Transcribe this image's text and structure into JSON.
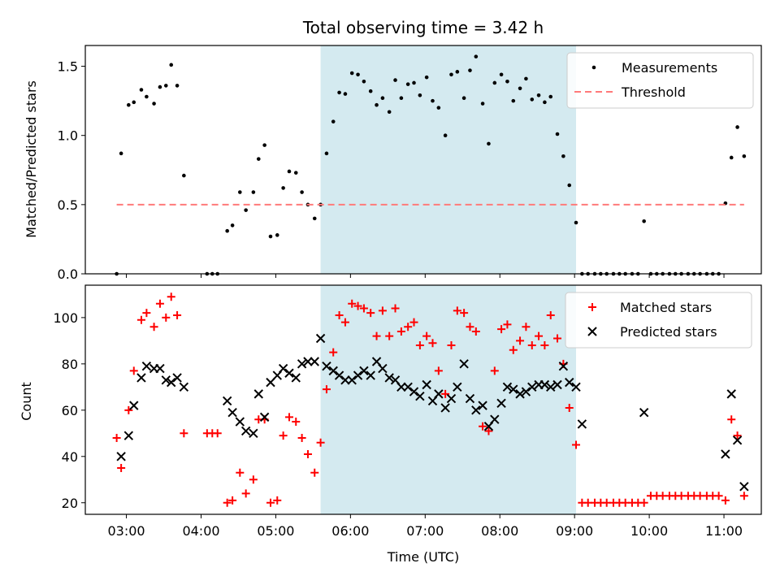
{
  "chart_data": {
    "type": "scatter",
    "title": "Total observing time = 3.42 h",
    "xlabel": "Time (UTC)",
    "x_ticks": [
      "03:00",
      "04:00",
      "05:00",
      "06:00",
      "07:00",
      "08:00",
      "09:00",
      "10:00",
      "11:00"
    ],
    "x_tick_hours": [
      3,
      4,
      5,
      6,
      7,
      8,
      9,
      10,
      11
    ],
    "xlim_hours": [
      2.45,
      11.5
    ],
    "shaded_span_hours": [
      5.6,
      9.02
    ],
    "shade_color": "#d4eaf0",
    "panels": [
      {
        "ylabel": "Matched/Predicted stars",
        "ylim": [
          0,
          1.65
        ],
        "y_ticks": [
          0.0,
          0.5,
          1.0,
          1.5
        ],
        "y_tick_labels": [
          "0.0",
          "0.5",
          "1.0",
          "1.5"
        ],
        "legend": {
          "position": "upper-right",
          "entries": [
            "Measurements",
            "Threshold"
          ]
        },
        "series": [
          {
            "name": "Measurements",
            "style": "dot",
            "color": "#000000",
            "x": [
              2.87,
              2.93,
              3.03,
              3.1,
              3.2,
              3.27,
              3.37,
              3.45,
              3.53,
              3.6,
              3.68,
              3.77,
              4.08,
              4.15,
              4.22,
              4.35,
              4.42,
              4.52,
              4.6,
              4.7,
              4.77,
              4.85,
              4.93,
              5.02,
              5.1,
              5.18,
              5.27,
              5.35,
              5.43,
              5.52,
              5.6,
              5.68,
              5.77,
              5.85,
              5.93,
              6.02,
              6.1,
              6.18,
              6.27,
              6.35,
              6.43,
              6.52,
              6.6,
              6.68,
              6.77,
              6.85,
              6.93,
              7.02,
              7.1,
              7.18,
              7.27,
              7.35,
              7.43,
              7.52,
              7.6,
              7.68,
              7.77,
              7.85,
              7.93,
              8.02,
              8.1,
              8.18,
              8.27,
              8.35,
              8.43,
              8.52,
              8.6,
              8.68,
              8.77,
              8.85,
              8.93,
              9.02,
              9.1,
              9.18,
              9.27,
              9.35,
              9.43,
              9.52,
              9.6,
              9.68,
              9.77,
              9.85,
              9.93,
              10.02,
              10.1,
              10.18,
              10.27,
              10.35,
              10.43,
              10.52,
              10.6,
              10.68,
              10.77,
              10.85,
              10.93,
              11.02,
              11.1,
              11.18,
              11.27
            ],
            "y": [
              0.0,
              0.87,
              1.22,
              1.24,
              1.33,
              1.28,
              1.23,
              1.35,
              1.36,
              1.51,
              1.36,
              0.71,
              0.0,
              0.0,
              0.0,
              0.31,
              0.35,
              0.59,
              0.46,
              0.59,
              0.83,
              0.93,
              0.27,
              0.28,
              0.62,
              0.74,
              0.73,
              0.59,
              0.5,
              0.4,
              0.5,
              0.87,
              1.1,
              1.31,
              1.3,
              1.45,
              1.44,
              1.39,
              1.32,
              1.22,
              1.27,
              1.17,
              1.4,
              1.27,
              1.37,
              1.38,
              1.29,
              1.42,
              1.25,
              1.2,
              1.0,
              1.44,
              1.46,
              1.27,
              1.47,
              1.57,
              1.23,
              0.94,
              1.38,
              1.44,
              1.39,
              1.25,
              1.34,
              1.41,
              1.26,
              1.29,
              1.24,
              1.28,
              1.01,
              0.85,
              0.64,
              0.37,
              0.0,
              0.0,
              0.0,
              0.0,
              0.0,
              0.0,
              0.0,
              0.0,
              0.0,
              0.0,
              0.38,
              0.0,
              0.0,
              0.0,
              0.0,
              0.0,
              0.0,
              0.0,
              0.0,
              0.0,
              0.0,
              0.0,
              0.0,
              0.51,
              0.84,
              1.06,
              0.85
            ]
          },
          {
            "name": "Threshold",
            "style": "dashed-line",
            "color": "#ff7a7a",
            "x": [
              2.87,
              11.27
            ],
            "y": [
              0.5,
              0.5
            ]
          }
        ]
      },
      {
        "ylabel": "Count",
        "ylim": [
          15,
          114
        ],
        "y_ticks": [
          20,
          40,
          60,
          80,
          100
        ],
        "y_tick_labels": [
          "20",
          "40",
          "60",
          "80",
          "100"
        ],
        "legend": {
          "position": "upper-right",
          "entries": [
            "Matched stars",
            "Predicted stars"
          ]
        },
        "series": [
          {
            "name": "Matched stars",
            "style": "plus",
            "color": "#ff0000",
            "x": [
              2.87,
              2.93,
              3.03,
              3.1,
              3.2,
              3.27,
              3.37,
              3.45,
              3.53,
              3.6,
              3.68,
              3.77,
              4.08,
              4.15,
              4.22,
              4.35,
              4.42,
              4.52,
              4.6,
              4.7,
              4.77,
              4.85,
              4.93,
              5.02,
              5.1,
              5.18,
              5.27,
              5.35,
              5.43,
              5.52,
              5.6,
              5.68,
              5.77,
              5.85,
              5.93,
              6.02,
              6.1,
              6.18,
              6.27,
              6.35,
              6.43,
              6.52,
              6.6,
              6.68,
              6.77,
              6.85,
              6.93,
              7.02,
              7.1,
              7.18,
              7.27,
              7.35,
              7.43,
              7.52,
              7.6,
              7.68,
              7.77,
              7.85,
              7.93,
              8.02,
              8.1,
              8.18,
              8.27,
              8.35,
              8.43,
              8.52,
              8.6,
              8.68,
              8.77,
              8.85,
              8.93,
              9.02,
              9.1,
              9.18,
              9.27,
              9.35,
              9.43,
              9.52,
              9.6,
              9.68,
              9.77,
              9.85,
              9.93,
              10.02,
              10.1,
              10.18,
              10.27,
              10.35,
              10.43,
              10.52,
              10.6,
              10.68,
              10.77,
              10.85,
              10.93,
              11.02,
              11.1,
              11.18,
              11.27
            ],
            "y": [
              48,
              35,
              60,
              77,
              99,
              102,
              96,
              106,
              100,
              109,
              101,
              50,
              50,
              50,
              50,
              20,
              21,
              33,
              24,
              30,
              56,
              56,
              20,
              21,
              49,
              57,
              55,
              48,
              41,
              33,
              46,
              69,
              85,
              101,
              98,
              106,
              105,
              104,
              102,
              92,
              103,
              92,
              104,
              94,
              96,
              98,
              88,
              92,
              89,
              77,
              67,
              88,
              103,
              102,
              96,
              94,
              53,
              51,
              77,
              95,
              97,
              86,
              90,
              96,
              88,
              92,
              88,
              101,
              91,
              80,
              61,
              45,
              20,
              20,
              20,
              20,
              20,
              20,
              20,
              20,
              20,
              20,
              20,
              23,
              23,
              23,
              23,
              23,
              23,
              23,
              23,
              23,
              23,
              23,
              23,
              21,
              56,
              49,
              23
            ]
          },
          {
            "name": "Predicted stars",
            "style": "x",
            "color": "#000000",
            "x": [
              2.93,
              3.03,
              3.1,
              3.2,
              3.27,
              3.37,
              3.45,
              3.53,
              3.6,
              3.68,
              3.77,
              4.35,
              4.42,
              4.52,
              4.6,
              4.7,
              4.77,
              4.85,
              4.93,
              5.02,
              5.1,
              5.18,
              5.27,
              5.35,
              5.43,
              5.52,
              5.6,
              5.68,
              5.77,
              5.85,
              5.93,
              6.02,
              6.1,
              6.18,
              6.27,
              6.35,
              6.43,
              6.52,
              6.6,
              6.68,
              6.77,
              6.85,
              6.93,
              7.02,
              7.1,
              7.18,
              7.27,
              7.35,
              7.43,
              7.52,
              7.6,
              7.68,
              7.77,
              7.85,
              7.93,
              8.02,
              8.1,
              8.18,
              8.27,
              8.35,
              8.43,
              8.52,
              8.6,
              8.68,
              8.77,
              8.85,
              8.93,
              9.02,
              9.1,
              9.93,
              11.02,
              11.1,
              11.18,
              11.27
            ],
            "y": [
              40,
              49,
              62,
              74,
              79,
              78,
              78,
              73,
              72,
              74,
              70,
              64,
              59,
              55,
              51,
              50,
              67,
              57,
              72,
              75,
              78,
              76,
              74,
              80,
              81,
              81,
              91,
              79,
              77,
              75,
              73,
              73,
              75,
              77,
              75,
              81,
              78,
              74,
              73,
              70,
              70,
              68,
              66,
              71,
              64,
              67,
              61,
              65,
              70,
              80,
              65,
              60,
              62,
              53,
              56,
              63,
              70,
              69,
              67,
              68,
              70,
              71,
              71,
              70,
              71,
              79,
              72,
              70,
              54,
              59,
              41,
              67,
              47,
              27
            ]
          }
        ]
      }
    ]
  }
}
